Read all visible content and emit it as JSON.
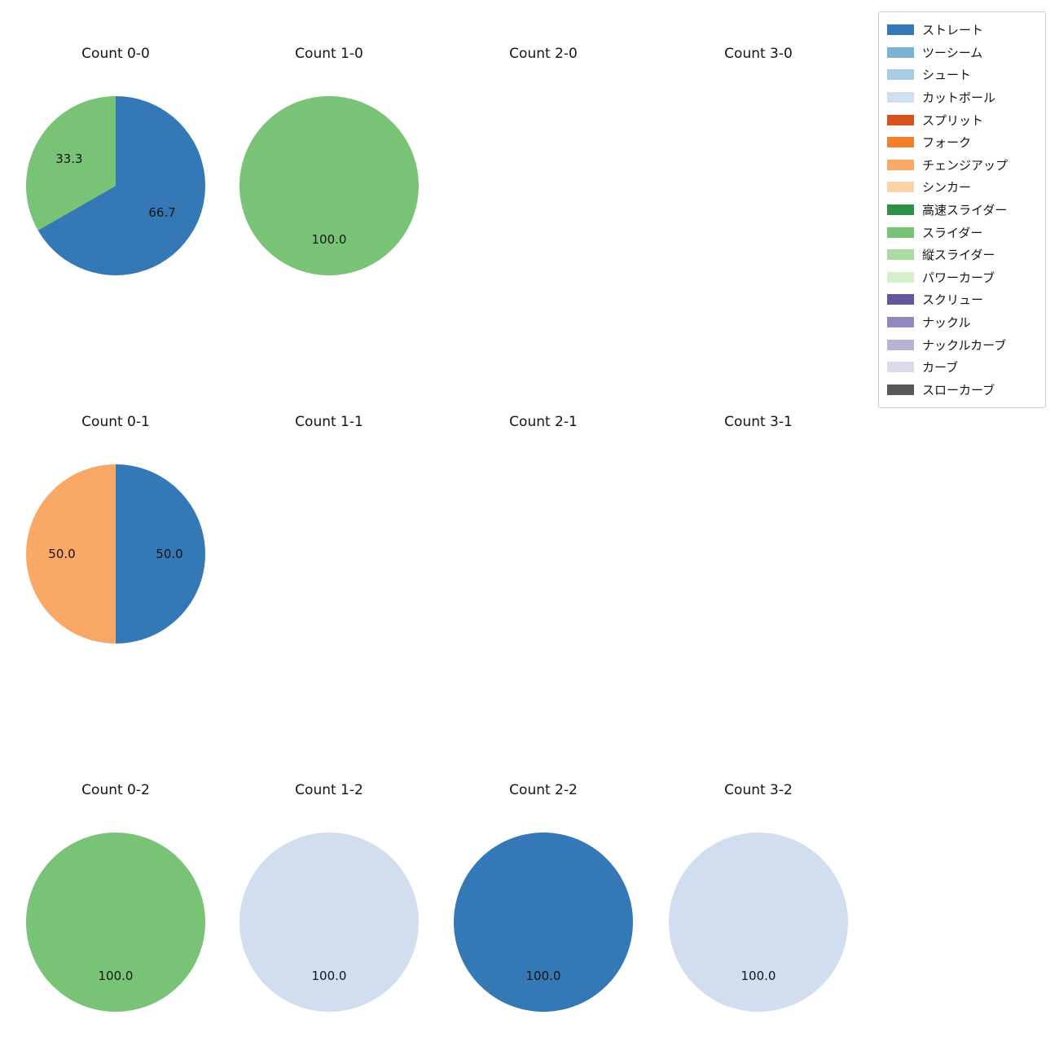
{
  "legend": {
    "items": [
      {
        "label": "ストレート",
        "color": "#3478b6"
      },
      {
        "label": "ツーシーム",
        "color": "#7ab2d6"
      },
      {
        "label": "シュート",
        "color": "#a8cce3"
      },
      {
        "label": "カットボール",
        "color": "#d0def0"
      },
      {
        "label": "スプリット",
        "color": "#d7511d"
      },
      {
        "label": "フォーク",
        "color": "#f57e2a"
      },
      {
        "label": "チェンジアップ",
        "color": "#f9a865"
      },
      {
        "label": "シンカー",
        "color": "#fbd2a4"
      },
      {
        "label": "高速スライダー",
        "color": "#2c9147"
      },
      {
        "label": "スライダー",
        "color": "#79c377"
      },
      {
        "label": "縦スライダー",
        "color": "#a9dba3"
      },
      {
        "label": "パワーカーブ",
        "color": "#d5efcd"
      },
      {
        "label": "スクリュー",
        "color": "#61589f"
      },
      {
        "label": "ナックル",
        "color": "#908ac0"
      },
      {
        "label": "ナックルカーブ",
        "color": "#b6b3d4"
      },
      {
        "label": "カーブ",
        "color": "#dddbeb"
      },
      {
        "label": "スローカーブ",
        "color": "#56585a"
      }
    ]
  },
  "chart_data": [
    {
      "type": "pie",
      "title": "Count 0-0",
      "start": "top",
      "direction": "clockwise",
      "slices": [
        {
          "label": "ストレート",
          "pct": 66.7,
          "pct_label": "66.7",
          "color": "#3478b6"
        },
        {
          "label": "スライダー",
          "pct": 33.3,
          "pct_label": "33.3",
          "color": "#79c377"
        }
      ]
    },
    {
      "type": "pie",
      "title": "Count 1-0",
      "start": "top",
      "direction": "clockwise",
      "slices": [
        {
          "label": "スライダー",
          "pct": 100.0,
          "pct_label": "100.0",
          "color": "#79c377"
        }
      ]
    },
    {
      "type": "pie",
      "title": "Count 2-0",
      "start": "top",
      "direction": "clockwise",
      "slices": []
    },
    {
      "type": "pie",
      "title": "Count 3-0",
      "start": "top",
      "direction": "clockwise",
      "slices": []
    },
    {
      "type": "pie",
      "title": "Count 0-1",
      "start": "top",
      "direction": "clockwise",
      "slices": [
        {
          "label": "ストレート",
          "pct": 50.0,
          "pct_label": "50.0",
          "color": "#3478b6"
        },
        {
          "label": "チェンジアップ",
          "pct": 50.0,
          "pct_label": "50.0",
          "color": "#f9a865"
        }
      ]
    },
    {
      "type": "pie",
      "title": "Count 1-1",
      "start": "top",
      "direction": "clockwise",
      "slices": []
    },
    {
      "type": "pie",
      "title": "Count 2-1",
      "start": "top",
      "direction": "clockwise",
      "slices": []
    },
    {
      "type": "pie",
      "title": "Count 3-1",
      "start": "top",
      "direction": "clockwise",
      "slices": []
    },
    {
      "type": "pie",
      "title": "Count 0-2",
      "start": "top",
      "direction": "clockwise",
      "slices": [
        {
          "label": "スライダー",
          "pct": 100.0,
          "pct_label": "100.0",
          "color": "#79c377"
        }
      ]
    },
    {
      "type": "pie",
      "title": "Count 1-2",
      "start": "top",
      "direction": "clockwise",
      "slices": [
        {
          "label": "カットボール",
          "pct": 100.0,
          "pct_label": "100.0",
          "color": "#d0def0"
        }
      ]
    },
    {
      "type": "pie",
      "title": "Count 2-2",
      "start": "top",
      "direction": "clockwise",
      "slices": [
        {
          "label": "ストレート",
          "pct": 100.0,
          "pct_label": "100.0",
          "color": "#3478b6"
        }
      ]
    },
    {
      "type": "pie",
      "title": "Count 3-2",
      "start": "top",
      "direction": "clockwise",
      "slices": [
        {
          "label": "カットボール",
          "pct": 100.0,
          "pct_label": "100.0",
          "color": "#d0def0"
        }
      ]
    }
  ]
}
